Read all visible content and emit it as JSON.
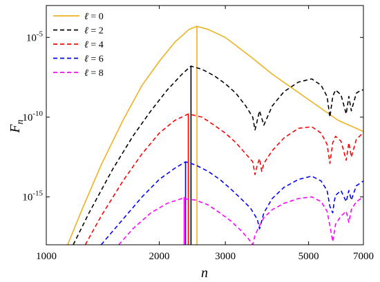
{
  "chart_data": {
    "type": "line",
    "x_scale": "log",
    "y_scale": "log",
    "xlabel": "n",
    "ylabel": "F_n",
    "xlim": [
      1000,
      7000
    ],
    "ylim": [
      1e-18,
      0.001
    ],
    "x_ticks": [
      1000,
      2000,
      3000,
      5000,
      7000
    ],
    "x_tick_labels": [
      "1000",
      "2000",
      "3000",
      "5000",
      "7000"
    ],
    "y_ticks": [
      1e-15,
      1e-10,
      1e-05
    ],
    "y_tick_labels": [
      {
        "base": "10",
        "exp": "-15"
      },
      {
        "base": "10",
        "exp": "-10"
      },
      {
        "base": "10",
        "exp": "-5"
      }
    ],
    "grid": false,
    "legend_position": "top-left",
    "series": [
      {
        "name": "ℓ = 0",
        "color": "#EDB120",
        "style": "solid",
        "x": [
          1140,
          1250,
          1400,
          1600,
          1800,
          2000,
          2200,
          2400,
          2520,
          2700,
          3000,
          3500,
          4000,
          5000,
          6000,
          7000
        ],
        "logy": [
          -18,
          -15.7,
          -13.0,
          -10.2,
          -8.0,
          -6.5,
          -5.3,
          -4.5,
          -4.3,
          -4.5,
          -5.0,
          -6.2,
          -7.3,
          -8.9,
          -10.2,
          -10.9
        ],
        "spike_x": 2520
      },
      {
        "name": "ℓ = 2",
        "color": "#000000",
        "style": "dashed",
        "x": [
          1180,
          1300,
          1500,
          1700,
          1900,
          2100,
          2300,
          2430,
          2600,
          2800,
          3000,
          3200,
          3400,
          3550,
          3600,
          3650,
          3700,
          3800,
          4000,
          4300,
          4700,
          5100,
          5400,
          5600,
          5700,
          5800,
          5900,
          6100,
          6300,
          6400,
          6500,
          6700,
          6900,
          7000
        ],
        "logy": [
          -18,
          -16.0,
          -13.3,
          -11.2,
          -9.6,
          -8.3,
          -7.3,
          -6.8,
          -7.0,
          -7.4,
          -7.9,
          -8.5,
          -9.3,
          -10.0,
          -10.8,
          -10.2,
          -9.6,
          -10.5,
          -9.3,
          -8.4,
          -7.8,
          -7.6,
          -8.0,
          -8.7,
          -10.0,
          -8.7,
          -8.3,
          -8.6,
          -9.8,
          -8.7,
          -9.6,
          -8.5,
          -8.3,
          -8.3
        ],
        "spike_x": 2430
      },
      {
        "name": "ℓ = 4",
        "color": "#FF0000",
        "style": "dashed",
        "x": [
          1270,
          1400,
          1600,
          1800,
          2000,
          2200,
          2390,
          2600,
          2800,
          3000,
          3200,
          3400,
          3550,
          3600,
          3650,
          3700,
          3750,
          3800,
          4000,
          4300,
          4700,
          5100,
          5400,
          5600,
          5700,
          5800,
          5900,
          6100,
          6300,
          6400,
          6500,
          6700,
          6900,
          7000
        ],
        "logy": [
          -18,
          -16.2,
          -14.0,
          -12.3,
          -11.0,
          -10.2,
          -9.8,
          -10.0,
          -10.5,
          -11.0,
          -11.6,
          -12.3,
          -12.8,
          -13.6,
          -13.0,
          -12.6,
          -13.4,
          -12.9,
          -12.1,
          -11.3,
          -10.7,
          -10.6,
          -11.0,
          -11.7,
          -12.9,
          -11.6,
          -11.2,
          -11.5,
          -12.7,
          -11.6,
          -12.5,
          -11.4,
          -11.1,
          -11.0
        ],
        "spike_x": 2390
      },
      {
        "name": "ℓ = 6",
        "color": "#0000FF",
        "style": "dashed",
        "x": [
          1400,
          1600,
          1800,
          2000,
          2200,
          2350,
          2500,
          2700,
          2900,
          3100,
          3300,
          3500,
          3650,
          3700,
          3750,
          3800,
          4000,
          4300,
          4700,
          5100,
          5400,
          5600,
          5700,
          5800,
          5850,
          5900,
          6100,
          6300,
          6400,
          6500,
          6700,
          6900,
          7000
        ],
        "logy": [
          -18,
          -16.4,
          -15.0,
          -13.9,
          -13.2,
          -12.8,
          -13.0,
          -13.4,
          -13.9,
          -14.5,
          -15.1,
          -15.7,
          -16.4,
          -17.0,
          -16.5,
          -16.0,
          -15.1,
          -14.4,
          -13.9,
          -13.7,
          -14.0,
          -14.6,
          -15.6,
          -16.0,
          -15.3,
          -14.9,
          -14.6,
          -15.3,
          -14.6,
          -15.2,
          -14.3,
          -14.1,
          -14.0
        ],
        "spike_x": 2350
      },
      {
        "name": "ℓ = 8",
        "color": "#FF00FF",
        "style": "dashed",
        "x": [
          1560,
          1700,
          1900,
          2100,
          2300,
          2500,
          2700,
          2900,
          3100,
          3300,
          3450,
          3550,
          3600,
          3700,
          3800,
          4000,
          4300,
          4700,
          5100,
          5400,
          5600,
          5700,
          5800,
          5900,
          6100,
          6300,
          6400,
          6500,
          6700,
          6900,
          7000
        ],
        "logy": [
          -18,
          -17.0,
          -16.0,
          -15.4,
          -15.1,
          -15.2,
          -15.5,
          -16.0,
          -16.5,
          -17.1,
          -17.6,
          -18.0,
          -17.4,
          -16.8,
          -16.3,
          -15.8,
          -15.4,
          -15.1,
          -15.0,
          -15.3,
          -15.9,
          -16.8,
          -17.8,
          -16.7,
          -16.2,
          -15.9,
          -16.6,
          -15.8,
          -15.3,
          -15.1,
          -15.0
        ],
        "spike_x": 2330
      }
    ]
  }
}
